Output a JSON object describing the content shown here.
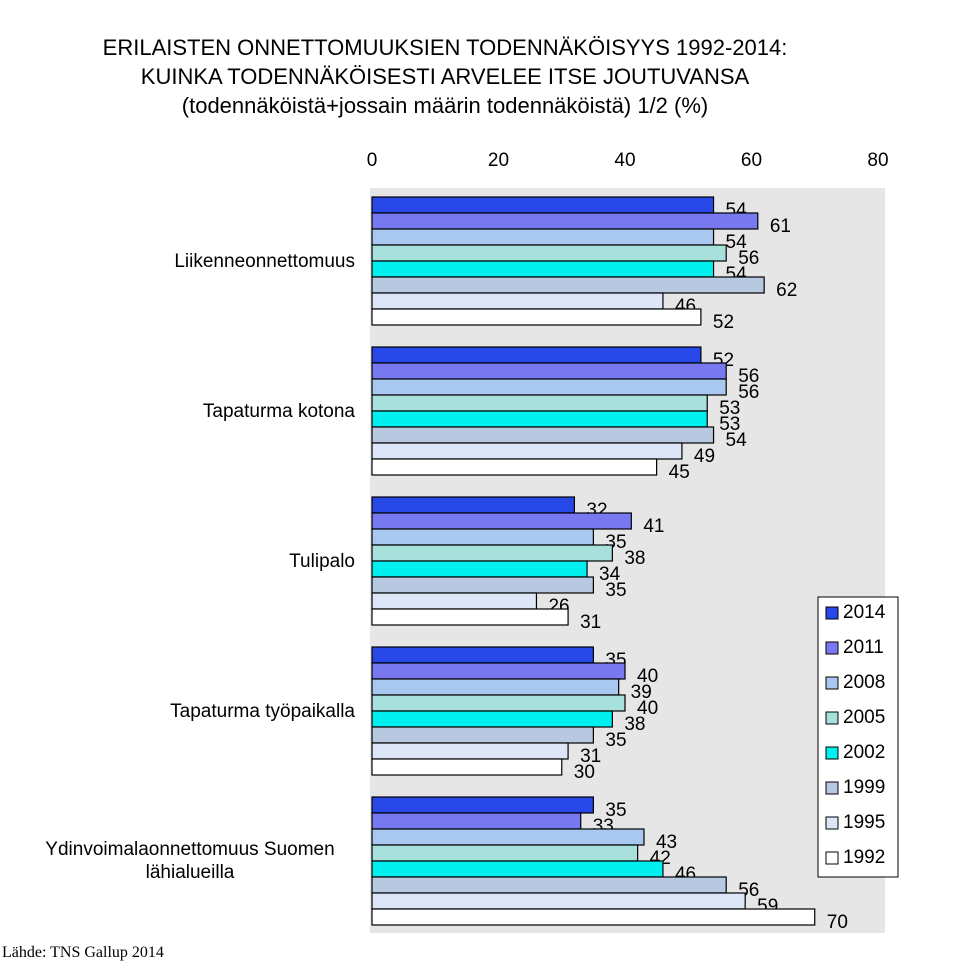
{
  "chart_data": {
    "type": "bar",
    "orientation": "horizontal",
    "title": "ERILAISTEN ONNETTOMUUKSIEN TODENNÄKÖISYYS 1992-2014: KUINKA TODENNÄKÖISESTI ARVELEE ITSE JOUTUVANSA",
    "subtitle": "(todennäköistä+jossain määrin todennäköistä) 1/2 (%)",
    "source": "Lähde: TNS Gallup 2014",
    "categories": [
      "Liikenneonnettomuus",
      "Tapaturma kotona",
      "Tulipalo",
      "Tapaturma työpaikalla",
      "Ydinvoimalaonnettomuus Suomen lähialueilla"
    ],
    "series": [
      {
        "name": "2014",
        "color": "#2848e8",
        "values": [
          54,
          52,
          32,
          35,
          35
        ]
      },
      {
        "name": "2011",
        "color": "#7878f0",
        "values": [
          61,
          56,
          41,
          40,
          33
        ]
      },
      {
        "name": "2008",
        "color": "#a8c8f0",
        "values": [
          54,
          56,
          35,
          39,
          43
        ]
      },
      {
        "name": "2005",
        "color": "#a8e0dc",
        "values": [
          56,
          53,
          38,
          40,
          42
        ]
      },
      {
        "name": "2002",
        "color": "#00f0f0",
        "values": [
          54,
          53,
          34,
          38,
          46
        ]
      },
      {
        "name": "1999",
        "color": "#b8c8e0",
        "values": [
          62,
          54,
          35,
          35,
          56
        ]
      },
      {
        "name": "1995",
        "color": "#dce6f6",
        "values": [
          46,
          49,
          26,
          31,
          59
        ]
      },
      {
        "name": "1992",
        "color": "#ffffff",
        "values": [
          52,
          45,
          31,
          30,
          70
        ]
      }
    ],
    "xlim": [
      0,
      80
    ],
    "xticks": [
      0,
      20,
      40,
      60,
      80
    ]
  }
}
